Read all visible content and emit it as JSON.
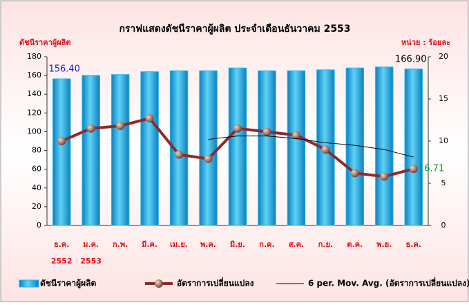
{
  "chart_data": {
    "type": "bar",
    "title": "กราฟแสดงดัชนีราคาผู้ผลิต  ประจำเดือนธันวาคม  2553",
    "ylabel": "ดัชนีราคาผู้ผลิต",
    "y2label": "หน่วย : ร้อยละ",
    "categories": [
      [
        "ธ.ค.",
        "2552"
      ],
      [
        "ม.ค.",
        "2553"
      ],
      [
        "ก.พ."
      ],
      [
        "มี.ค."
      ],
      [
        "เม.ย."
      ],
      [
        "พ.ค."
      ],
      [
        "มิ.ย."
      ],
      [
        "ก.ค."
      ],
      [
        "ส.ค."
      ],
      [
        "ก.ย."
      ],
      [
        "ต.ค."
      ],
      [
        "พ.ย."
      ],
      [
        "ธ.ค."
      ]
    ],
    "series": [
      {
        "name": "ดัชนีราคาผู้ผลิต",
        "type": "bar",
        "color": "#29b6e6",
        "values": [
          156.4,
          160,
          161,
          164,
          165,
          165,
          168,
          165,
          165,
          166,
          168,
          169,
          166.9
        ],
        "value_labels": [
          "156.40",
          null,
          null,
          null,
          null,
          null,
          null,
          null,
          null,
          null,
          null,
          null,
          "166.90"
        ]
      },
      {
        "name": "อัตราการเปลี่ยนแปลง",
        "type": "line",
        "color": "#8b2b2b",
        "axis": "y2",
        "values": [
          10.0,
          11.5,
          11.8,
          12.7,
          8.4,
          7.9,
          11.5,
          11.1,
          10.7,
          9.0,
          6.2,
          5.8,
          6.71
        ],
        "value_labels": [
          null,
          null,
          null,
          null,
          null,
          null,
          null,
          null,
          null,
          null,
          null,
          null,
          "6.71"
        ]
      },
      {
        "name": "6 per. Mov. Avg. (อัตราการเปลี่ยนแปลง)",
        "type": "line",
        "color": "#000000",
        "axis": "y2",
        "values": [
          null,
          null,
          null,
          null,
          null,
          10.2,
          10.6,
          10.6,
          10.3,
          9.8,
          9.5,
          9.0,
          8.1
        ]
      }
    ],
    "ylim": [
      0,
      180
    ],
    "yticks": [
      0,
      20,
      40,
      60,
      80,
      100,
      120,
      140,
      160,
      180
    ],
    "y2lim": [
      0,
      20
    ],
    "y2ticks": [
      0,
      5,
      10,
      15,
      20
    ]
  }
}
